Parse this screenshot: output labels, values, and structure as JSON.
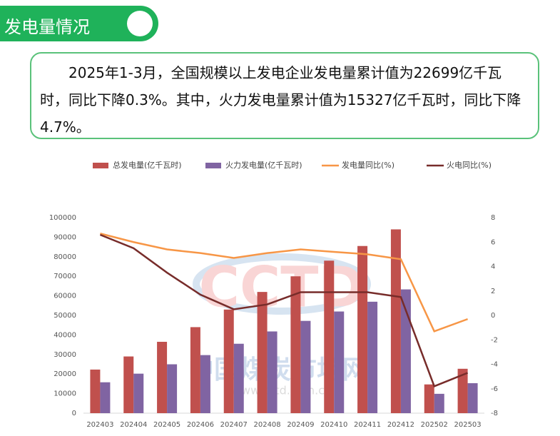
{
  "header": {
    "title": "发电量情况"
  },
  "summary": "2025年1-3月，全国规模以上发电企业发电量累计值为22699亿千瓦时，同比下降0.3%。其中，火力发电量累计值为15327亿千瓦时，同比下降4.7%。",
  "watermark": {
    "logo": "CCTD",
    "name": "中国煤炭市场网",
    "url": "www.cctd.com.cn"
  },
  "chart_data": {
    "type": "bar-line",
    "categories": [
      "202403",
      "202404",
      "202405",
      "202406",
      "202407",
      "202408",
      "202409",
      "202410",
      "202411",
      "202412",
      "202502",
      "202503"
    ],
    "series": [
      {
        "name": "总发电量(亿千瓦时)",
        "type": "bar",
        "color": "#c0504d",
        "values": [
          22300,
          29000,
          36500,
          44000,
          53000,
          62000,
          70000,
          78000,
          85500,
          94000,
          14700,
          22699
        ]
      },
      {
        "name": "火力发电量(亿千瓦时)",
        "type": "bar",
        "color": "#8064a2",
        "values": [
          15800,
          20200,
          25000,
          29700,
          35500,
          41800,
          47200,
          52000,
          57000,
          63300,
          9900,
          15327
        ]
      },
      {
        "name": "发电量同比(%)",
        "type": "line",
        "axis": "y2",
        "color": "#f79646",
        "values": [
          6.7,
          6.0,
          5.4,
          5.1,
          4.7,
          5.1,
          5.4,
          5.2,
          5.0,
          4.6,
          -1.3,
          -0.3
        ]
      },
      {
        "name": "火电同比(%)",
        "type": "line",
        "axis": "y2",
        "color": "#772c2a",
        "values": [
          6.6,
          5.5,
          3.5,
          1.7,
          0.5,
          0.9,
          1.9,
          1.9,
          1.9,
          1.5,
          -5.8,
          -4.7
        ]
      }
    ],
    "ylim": [
      0,
      100000
    ],
    "yticks": [
      0,
      10000,
      20000,
      30000,
      40000,
      50000,
      60000,
      70000,
      80000,
      90000,
      100000
    ],
    "y2lim": [
      -8,
      8
    ],
    "y2ticks": [
      -8,
      -6,
      -4,
      -2,
      0,
      2,
      4,
      6,
      8
    ],
    "legend": "top"
  }
}
